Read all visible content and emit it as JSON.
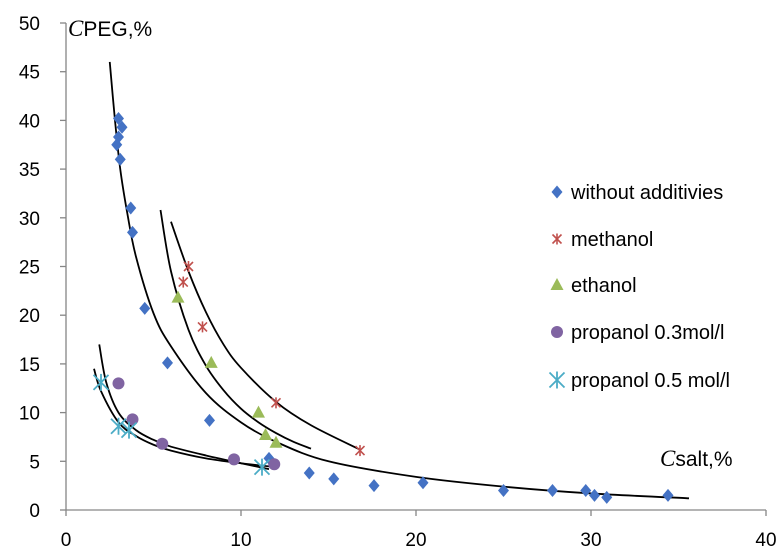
{
  "chart_data": {
    "type": "scatter",
    "title": "",
    "ylabel_prefix": "C",
    "ylabel_rest": "PEG,%",
    "xlabel_prefix": "C",
    "xlabel_rest": "salt,%",
    "xlim": [
      0,
      40
    ],
    "ylim": [
      0,
      50
    ],
    "x_ticks": [
      0,
      10,
      20,
      30,
      40
    ],
    "y_ticks": [
      0,
      5,
      10,
      15,
      20,
      25,
      30,
      35,
      40,
      45,
      50
    ],
    "grid": false,
    "legend_position": "right",
    "series": [
      {
        "name": "without additivies",
        "marker": "diamond",
        "color": "#4472C4",
        "points": [
          [
            3.0,
            40.2
          ],
          [
            3.2,
            39.3
          ],
          [
            3.0,
            38.3
          ],
          [
            2.9,
            37.5
          ],
          [
            3.1,
            36.0
          ],
          [
            3.7,
            31.0
          ],
          [
            3.8,
            28.5
          ],
          [
            4.5,
            20.7
          ],
          [
            5.8,
            15.1
          ],
          [
            8.2,
            9.2
          ],
          [
            11.6,
            5.3
          ],
          [
            13.9,
            3.8
          ],
          [
            15.3,
            3.2
          ],
          [
            17.6,
            2.5
          ],
          [
            20.4,
            2.8
          ],
          [
            25.0,
            2.0
          ],
          [
            27.8,
            2.0
          ],
          [
            29.7,
            2.0
          ],
          [
            30.2,
            1.5
          ],
          [
            30.9,
            1.3
          ],
          [
            34.4,
            1.5
          ]
        ]
      },
      {
        "name": "methanol",
        "marker": "star",
        "color": "#C0504D",
        "points": [
          [
            7.0,
            25.0
          ],
          [
            6.7,
            23.4
          ],
          [
            7.8,
            18.8
          ],
          [
            12.0,
            11.0
          ],
          [
            16.8,
            6.1
          ]
        ]
      },
      {
        "name": "ethanol",
        "marker": "triangle",
        "color": "#9BBB59",
        "points": [
          [
            6.4,
            21.8
          ],
          [
            8.3,
            15.1
          ],
          [
            11.0,
            10.0
          ],
          [
            11.4,
            7.7
          ],
          [
            12.0,
            6.9
          ]
        ]
      },
      {
        "name": "propanol 0.3mol/l",
        "marker": "circle",
        "color": "#8064A2",
        "points": [
          [
            3.0,
            13.0
          ],
          [
            3.8,
            9.3
          ],
          [
            5.5,
            6.8
          ],
          [
            9.6,
            5.2
          ],
          [
            11.9,
            4.7
          ]
        ]
      },
      {
        "name": "propanol 0.5 mol/l",
        "marker": "asterisk",
        "color": "#4BACC6",
        "points": [
          [
            2.0,
            13.1
          ],
          [
            3.0,
            8.6
          ],
          [
            3.6,
            8.2
          ],
          [
            11.2,
            4.4
          ]
        ]
      }
    ],
    "curves": [
      {
        "x": [
          2.5,
          2.8,
          3.1,
          3.5,
          4.0,
          5.0,
          6.0,
          8.0,
          10.0,
          12.0,
          15.0,
          20.0,
          25.0,
          30.0,
          35.6
        ],
        "y": [
          46.0,
          40.0,
          35.0,
          30.5,
          26.0,
          20.2,
          16.8,
          12.0,
          9.0,
          7.0,
          5.0,
          3.4,
          2.4,
          1.7,
          1.2
        ]
      },
      {
        "x": [
          6.0,
          7.0,
          8.0,
          9.0,
          10.0,
          12.0,
          14.0,
          16.8
        ],
        "y": [
          29.6,
          24.5,
          20.3,
          17.0,
          14.6,
          11.1,
          8.7,
          6.2
        ]
      },
      {
        "x": [
          5.4,
          6.0,
          7.0,
          8.0,
          9.0,
          10.0,
          11.0,
          12.0,
          13.0,
          14.0
        ],
        "y": [
          30.8,
          24.5,
          18.5,
          14.8,
          12.3,
          10.4,
          9.0,
          7.9,
          7.0,
          6.3
        ]
      },
      {
        "x": [
          1.6,
          2.0,
          3.0,
          4.0,
          5.0,
          6.0,
          8.0,
          10.0,
          12.0
        ],
        "y": [
          14.5,
          12.2,
          9.0,
          7.6,
          6.7,
          6.1,
          5.3,
          4.8,
          4.4
        ]
      },
      {
        "x": [
          1.9,
          2.3,
          3.0,
          4.0,
          5.0,
          6.0,
          8.0,
          10.0,
          11.6
        ],
        "y": [
          17.0,
          13.1,
          10.0,
          8.2,
          7.2,
          6.5,
          5.6,
          4.8,
          4.2
        ]
      }
    ]
  }
}
